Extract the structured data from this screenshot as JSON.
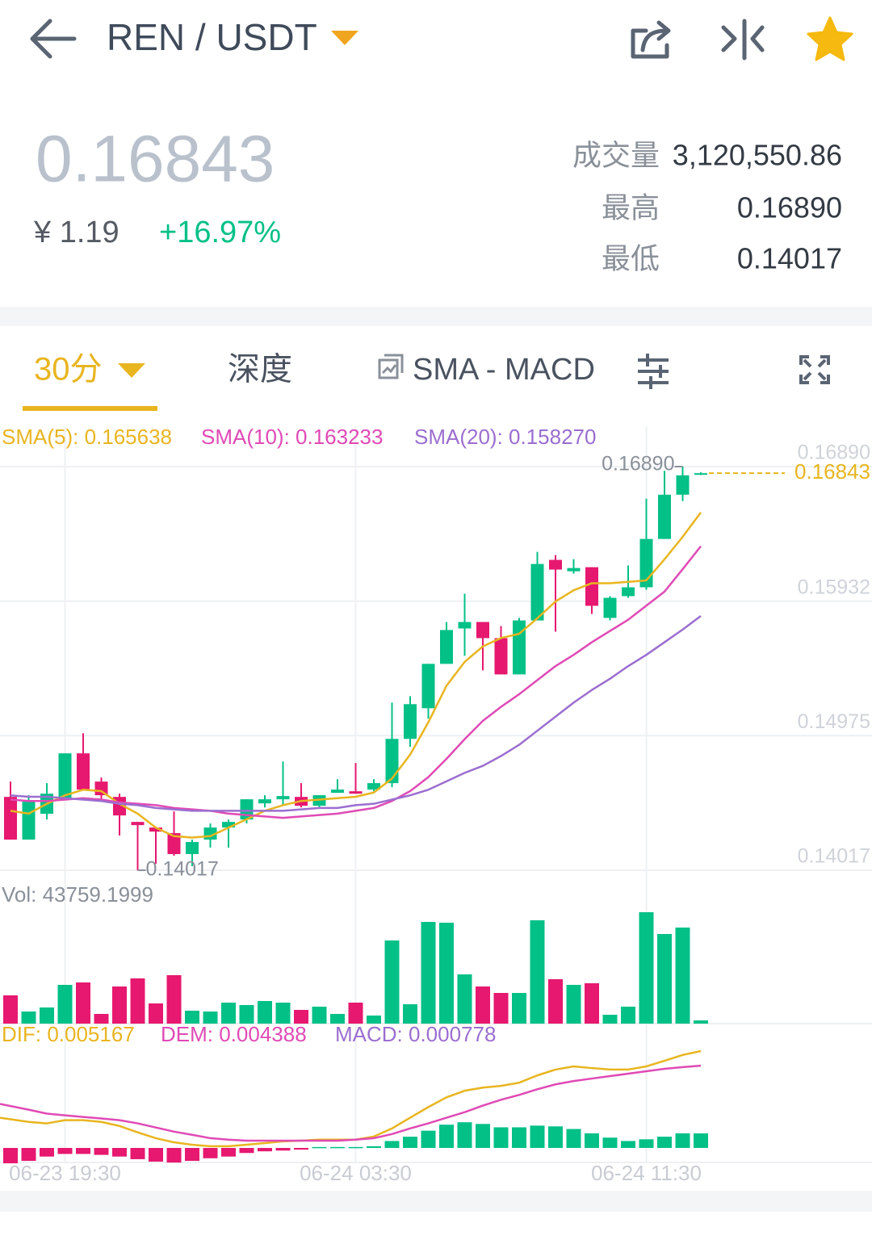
{
  "header": {
    "pair": "REN / USDT"
  },
  "ticker": {
    "price": "0.16843",
    "cny": "¥ 1.19",
    "change": "+16.97%",
    "stats": [
      {
        "label": "成交量",
        "value": "3,120,550.86"
      },
      {
        "label": "最高",
        "value": "0.16890"
      },
      {
        "label": "最低",
        "value": "0.14017"
      }
    ]
  },
  "tabs": {
    "interval": "30分",
    "depth": "深度",
    "indicator": "SMA - MACD"
  },
  "chart_data": {
    "type": "candlestick",
    "categories": [
      null,
      null,
      null,
      "06-23 19:30",
      null,
      null,
      null,
      null,
      null,
      null,
      null,
      null,
      null,
      null,
      null,
      null,
      null,
      null,
      null,
      "06-24 03:30",
      null,
      null,
      null,
      null,
      null,
      null,
      null,
      null,
      null,
      null,
      null,
      null,
      null,
      null,
      null,
      "06-24 11:30",
      null,
      null,
      null
    ],
    "open": [
      0.14539,
      0.14235,
      0.14419,
      0.14522,
      0.14849,
      0.14648,
      0.14539,
      0.14361,
      0.14321,
      0.14281,
      0.14132,
      0.14235,
      0.14321,
      0.14378,
      0.14493,
      0.14522,
      0.14539,
      0.14476,
      0.14568,
      0.14579,
      0.14591,
      0.14637,
      0.14952,
      0.1517,
      0.15486,
      0.15738,
      0.15784,
      0.15669,
      0.15411,
      0.15795,
      0.16226,
      0.16145,
      0.16174,
      0.15813,
      0.15968,
      0.16031,
      0.16375,
      0.1669,
      0.1684
    ],
    "high": [
      0.14648,
      0.14551,
      0.14637,
      0.14849,
      0.14992,
      0.14677,
      0.14562,
      0.14361,
      0.14321,
      0.14436,
      0.14235,
      0.1435,
      0.14378,
      0.14522,
      0.14551,
      0.14791,
      0.14637,
      0.14551,
      0.14665,
      0.1478,
      0.14665,
      0.1521,
      0.15256,
      0.15486,
      0.15784,
      0.15985,
      0.15784,
      0.15755,
      0.15813,
      0.16283,
      0.1626,
      0.16231,
      0.16174,
      0.15968,
      0.16186,
      0.16662,
      0.1686,
      0.1689,
      0.1685
    ],
    "low": [
      0.14235,
      0.14235,
      0.14378,
      0.14522,
      0.14591,
      0.14522,
      0.14264,
      0.14017,
      0.14063,
      0.1412,
      0.14046,
      0.14178,
      0.14178,
      0.1435,
      0.14464,
      0.14476,
      0.14464,
      0.14464,
      0.14568,
      0.14562,
      0.14579,
      0.14608,
      0.14895,
      0.15096,
      0.15486,
      0.15543,
      0.1544,
      0.15411,
      0.15411,
      0.15795,
      0.15715,
      0.16128,
      0.15841,
      0.15795,
      0.15956,
      0.16013,
      0.16375,
      0.16645,
      0.1683
    ],
    "close": [
      0.14235,
      0.14505,
      0.14562,
      0.14849,
      0.14591,
      0.14551,
      0.14407,
      0.14338,
      0.14292,
      0.14132,
      0.14218,
      0.14321,
      0.14361,
      0.14522,
      0.14522,
      0.14545,
      0.14476,
      0.14551,
      0.14591,
      0.14562,
      0.14637,
      0.14952,
      0.15199,
      0.15486,
      0.15727,
      0.15784,
      0.15669,
      0.15411,
      0.15795,
      0.16197,
      0.16157,
      0.16168,
      0.15899,
      0.15956,
      0.16031,
      0.16375,
      0.1669,
      0.16828,
      0.16843
    ],
    "up_color": "#03c087",
    "down_color": "#e6186f",
    "ylim": [
      0.14017,
      0.1689
    ],
    "yticks": [
      0.14017,
      0.14975,
      0.15932,
      {
        "value": 0.1689,
        "label": "0.16890"
      }
    ],
    "grid": true,
    "last_price": 0.16843,
    "last_price_color": "#e8b51f",
    "high_marker": {
      "value": 0.1689,
      "label": "0.16890"
    },
    "low_marker": 0.14017,
    "overlays": [
      {
        "label": "SMA(5): 0.165638",
        "color": "#e8b51f",
        "values": [
          0.1444,
          0.1442,
          0.1449,
          0.1455,
          0.1459,
          0.1458,
          0.1449,
          0.1442,
          0.1432,
          0.1426,
          0.1425,
          0.1426,
          0.1432,
          0.1438,
          0.1444,
          0.1448,
          0.1451,
          0.1452,
          0.1453,
          0.1454,
          0.1457,
          0.1467,
          0.1484,
          0.1507,
          0.1533,
          0.155,
          0.1561,
          0.1567,
          0.157,
          0.1581,
          0.1593,
          0.1601,
          0.1606,
          0.1606,
          0.1607,
          0.1608,
          0.1623,
          0.1639,
          0.165638
        ]
      },
      {
        "label": "SMA(10): 0.163233",
        "color": "#e04ab5",
        "values": [
          0.1452,
          0.1451,
          0.1451,
          0.1452,
          0.1453,
          0.1452,
          0.145,
          0.1449,
          0.1448,
          0.1446,
          0.1445,
          0.1444,
          0.1442,
          0.1441,
          0.144,
          0.1439,
          0.144,
          0.1441,
          0.1442,
          0.1444,
          0.1446,
          0.1451,
          0.1458,
          0.1468,
          0.1481,
          0.1495,
          0.1508,
          0.1518,
          0.1527,
          0.1537,
          0.1547,
          0.1555,
          0.1564,
          0.1572,
          0.158,
          0.159,
          0.16,
          0.1616,
          0.163233
        ]
      },
      {
        "label": "SMA(20): 0.158270",
        "color": "#9b6ed0",
        "values": [
          0.1455,
          0.1454,
          0.1454,
          0.1453,
          0.1452,
          0.1451,
          0.1449,
          0.1448,
          0.1446,
          0.1445,
          0.1444,
          0.1444,
          0.1444,
          0.1444,
          0.1444,
          0.1444,
          0.1445,
          0.1446,
          0.1446,
          0.1448,
          0.1449,
          0.1452,
          0.1455,
          0.1459,
          0.1465,
          0.1471,
          0.1476,
          0.1483,
          0.1491,
          0.1501,
          0.1511,
          0.1521,
          0.153,
          0.1538,
          0.1547,
          0.1555,
          0.1564,
          0.1573,
          0.15827
        ]
      }
    ],
    "volume": {
      "label": "Vol: 43759.1999",
      "values": [
        382900,
        164100,
        218800,
        525100,
        557900,
        131300,
        503200,
        612600,
        273500,
        656400,
        175000,
        164100,
        284400,
        251600,
        306300,
        284400,
        186000,
        229700,
        131300,
        284400,
        109400,
        1126800,
        262600,
        1378400,
        1367500,
        667300,
        503200,
        415700,
        415700,
        1400300,
        601700,
        525100,
        547000,
        120300,
        229700,
        1509700,
        1214300,
        1301900,
        43759.1999
      ]
    },
    "macd": {
      "lines": [
        {
          "label": "DIF: 0.005167",
          "color": "#e8b51f",
          "values": [
            0.00161,
            0.00139,
            0.00131,
            0.00148,
            0.00148,
            0.00139,
            0.00117,
            0.00083,
            0.00052,
            0.0003,
            0.00017,
            9e-05,
            9e-05,
            0.00017,
            0.00026,
            0.00035,
            0.00039,
            0.00044,
            0.00044,
            0.00044,
            0.00061,
            0.00104,
            0.00161,
            0.00218,
            0.0027,
            0.00305,
            0.00322,
            0.00331,
            0.00348,
            0.00387,
            0.00418,
            0.00435,
            0.00426,
            0.00418,
            0.00418,
            0.00435,
            0.00465,
            0.00496,
            0.005167
          ]
        },
        {
          "label": "DEM: 0.004388",
          "color": "#e04ab5",
          "values": [
            0.00235,
            0.00204,
            0.00183,
            0.00174,
            0.00165,
            0.00157,
            0.00148,
            0.00131,
            0.00109,
            0.00087,
            0.0007,
            0.00052,
            0.00044,
            0.00039,
            0.00039,
            0.00039,
            0.00039,
            0.00039,
            0.00039,
            0.00044,
            0.00052,
            0.00074,
            0.00104,
            0.00131,
            0.00161,
            0.00191,
            0.00226,
            0.00257,
            0.00283,
            0.00313,
            0.00339,
            0.00357,
            0.0037,
            0.00383,
            0.00396,
            0.00409,
            0.00422,
            0.00431,
            0.004388
          ]
        }
      ],
      "histogram": {
        "label": "MACD: 0.000778",
        "color": "#9b6ed0",
        "values": [
          -0.00082,
          -0.00069,
          -0.00046,
          -0.00032,
          -0.00032,
          -0.00037,
          -0.00046,
          -0.0006,
          -0.00073,
          -0.00078,
          -0.00069,
          -0.00055,
          -0.00046,
          -0.00027,
          -0.00018,
          -0.00014,
          -9e-05,
          5e-05,
          5e-05,
          5e-05,
          9e-05,
          0.00037,
          0.0006,
          0.00092,
          0.00124,
          0.00137,
          0.00128,
          0.0011,
          0.0011,
          0.00119,
          0.00115,
          0.00101,
          0.00078,
          0.00055,
          0.00037,
          0.00046,
          0.0006,
          0.00078,
          0.000778
        ]
      }
    }
  }
}
